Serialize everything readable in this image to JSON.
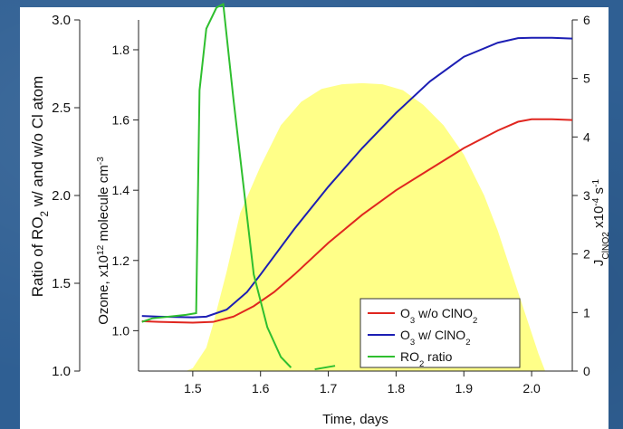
{
  "chart_data": {
    "type": "line",
    "xlabel": "Time, days",
    "x_ticks": [
      "1.5",
      "1.6",
      "1.7",
      "1.8",
      "1.9",
      "2.0"
    ],
    "xlim": [
      1.42,
      2.06
    ],
    "axes": {
      "ratio": {
        "label_parts": [
          "Ratio of RO",
          "2",
          " w/  and w/o Cl atom"
        ],
        "ticks": [
          "1.0",
          "1.5",
          "2.0",
          "2.5",
          "3.0"
        ],
        "ylim": [
          1.0,
          3.0
        ]
      },
      "ozone": {
        "label_parts": [
          "Ozone, x10",
          "12",
          " molecule cm",
          "-3"
        ],
        "ticks": [
          "1.0",
          "1.2",
          "1.4",
          "1.6",
          "1.8"
        ],
        "ylim": [
          0.885,
          1.885
        ]
      },
      "jclno2": {
        "label_parts": [
          "J",
          "ClNO2",
          " x10",
          "-4",
          " s",
          "-1"
        ],
        "ticks": [
          "0",
          "1",
          "2",
          "3",
          "4",
          "5",
          "6"
        ],
        "ylim": [
          0,
          6
        ]
      }
    },
    "series": [
      {
        "name_parts": [
          "O",
          "3",
          " w/o ClNO",
          "2"
        ],
        "axis": "ozone",
        "color": "#e0261f",
        "x": [
          1.425,
          1.45,
          1.5,
          1.53,
          1.56,
          1.59,
          1.62,
          1.65,
          1.7,
          1.75,
          1.8,
          1.85,
          1.9,
          1.95,
          1.98,
          2.0,
          2.03,
          2.06
        ],
        "y": [
          1.027,
          1.025,
          1.023,
          1.025,
          1.04,
          1.07,
          1.11,
          1.16,
          1.25,
          1.33,
          1.4,
          1.46,
          1.52,
          1.57,
          1.595,
          1.602,
          1.602,
          1.6
        ]
      },
      {
        "name_parts": [
          "O",
          "3",
          " w/ ClNO",
          "2"
        ],
        "axis": "ozone",
        "color": "#1c1eb4",
        "x": [
          1.425,
          1.45,
          1.5,
          1.52,
          1.55,
          1.58,
          1.6,
          1.65,
          1.7,
          1.75,
          1.8,
          1.85,
          1.9,
          1.95,
          1.98,
          2.0,
          2.03,
          2.06
        ],
        "y": [
          1.042,
          1.04,
          1.038,
          1.04,
          1.06,
          1.11,
          1.16,
          1.29,
          1.41,
          1.52,
          1.62,
          1.71,
          1.78,
          1.82,
          1.833,
          1.834,
          1.834,
          1.832
        ]
      },
      {
        "name_parts": [
          "RO",
          "2",
          " ratio"
        ],
        "axis": "ratio",
        "color": "#2fbf2f",
        "segments": [
          {
            "x": [
              1.425,
              1.44,
              1.49,
              1.505,
              1.51,
              1.52,
              1.535,
              1.545,
              1.56,
              1.575,
              1.59,
              1.61,
              1.63,
              1.645
            ],
            "y": [
              1.28,
              1.3,
              1.32,
              1.33,
              2.6,
              2.95,
              3.07,
              3.09,
              2.55,
              2.05,
              1.55,
              1.25,
              1.08,
              1.02
            ]
          },
          {
            "x": [
              1.68,
              1.71
            ],
            "y": [
              1.01,
              1.03
            ]
          }
        ]
      }
    ],
    "fill": {
      "axis": "jclno2",
      "color": "#ffff88",
      "x": [
        1.49,
        1.5,
        1.52,
        1.53,
        1.55,
        1.57,
        1.6,
        1.63,
        1.66,
        1.69,
        1.72,
        1.75,
        1.78,
        1.81,
        1.84,
        1.87,
        1.9,
        1.93,
        1.95,
        1.97,
        1.99,
        2.01,
        2.02
      ],
      "y": [
        0.0,
        0.05,
        0.4,
        0.8,
        1.7,
        2.7,
        3.5,
        4.2,
        4.6,
        4.82,
        4.9,
        4.92,
        4.9,
        4.8,
        4.55,
        4.2,
        3.7,
        3.0,
        2.4,
        1.7,
        1.0,
        0.3,
        0.0
      ]
    },
    "legend": "bottom-right"
  }
}
